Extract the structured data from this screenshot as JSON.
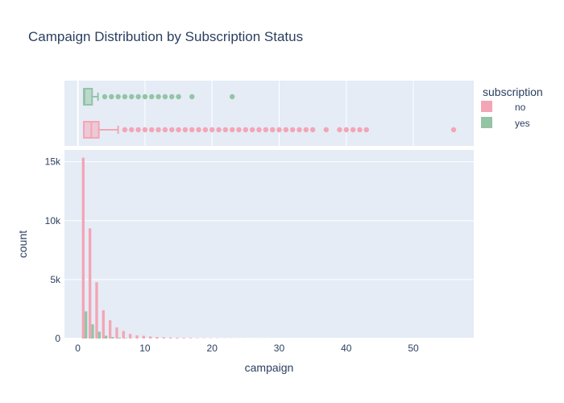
{
  "chart_data": {
    "type": "histogram",
    "title": "Campaign Distribution by Subscription Status",
    "xlabel": "campaign",
    "ylabel": "count",
    "xlim": [
      -2,
      59
    ],
    "ylim": [
      0,
      16000
    ],
    "x_ticks": [
      0,
      10,
      20,
      30,
      40,
      50
    ],
    "y_ticks": [
      0,
      5000,
      10000,
      15000
    ],
    "y_tick_labels": [
      "0",
      "5k",
      "10k",
      "15k"
    ],
    "legend": {
      "title": "subscription",
      "placement": "top-right"
    },
    "series": [
      {
        "name": "no",
        "color": "#f4a5b5",
        "histogram": {
          "x": [
            1,
            2,
            3,
            4,
            5,
            6,
            7,
            8,
            9,
            10,
            11,
            12,
            13,
            14,
            15,
            16,
            17,
            18,
            19,
            20,
            21,
            22,
            23,
            24,
            25,
            26,
            27,
            28,
            29,
            30,
            31,
            32,
            33,
            34,
            35,
            37,
            39,
            40,
            41,
            42,
            43,
            56
          ],
          "counts": [
            15340,
            9350,
            4780,
            2400,
            1550,
            940,
            640,
            390,
            270,
            230,
            170,
            130,
            100,
            80,
            70,
            60,
            50,
            30,
            25,
            25,
            20,
            16,
            14,
            12,
            8,
            8,
            10,
            8,
            7,
            6,
            6,
            4,
            4,
            5,
            4,
            1,
            1,
            2,
            1,
            2,
            3,
            1
          ]
        },
        "box": {
          "min": 1,
          "q1": 1,
          "median": 2,
          "q3": 3,
          "upper_fence": 6,
          "outliers": [
            7,
            8,
            9,
            10,
            11,
            12,
            13,
            14,
            15,
            16,
            17,
            18,
            19,
            20,
            21,
            22,
            23,
            24,
            25,
            26,
            27,
            28,
            29,
            30,
            31,
            32,
            33,
            34,
            35,
            37,
            39,
            40,
            41,
            42,
            43,
            56
          ]
        }
      },
      {
        "name": "yes",
        "color": "#93c4a5",
        "histogram": {
          "x": [
            1,
            2,
            3,
            4,
            5,
            6,
            7,
            8,
            9,
            10,
            11,
            12,
            13,
            14,
            15,
            17,
            23
          ],
          "counts": [
            2300,
            1210,
            580,
            240,
            120,
            70,
            40,
            20,
            15,
            10,
            10,
            5,
            5,
            3,
            3,
            2,
            1
          ]
        },
        "box": {
          "min": 1,
          "q1": 1,
          "median": 1,
          "q3": 2,
          "upper_fence": 3,
          "outliers": [
            4,
            5,
            6,
            7,
            8,
            9,
            10,
            11,
            12,
            13,
            14,
            15,
            17,
            23
          ]
        }
      }
    ]
  }
}
